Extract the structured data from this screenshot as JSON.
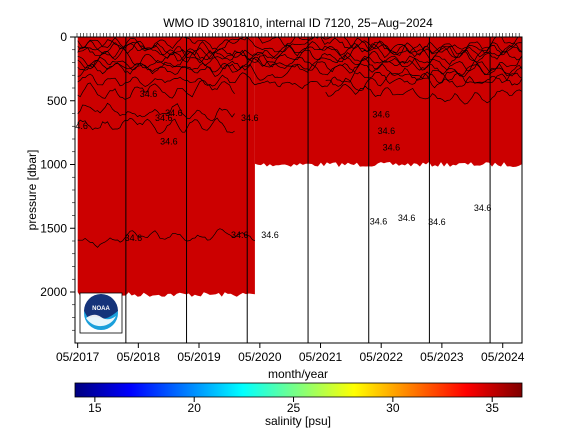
{
  "chart_data": {
    "type": "heatmap",
    "title": "WMO ID 3901810, internal ID 7120, 25−Aug−2024",
    "xlabel": "month/year",
    "ylabel": "pressure [dbar]",
    "x_ticks": [
      "05/2017",
      "05/2018",
      "05/2019",
      "05/2020",
      "05/2021",
      "05/2022",
      "05/2023",
      "05/2024"
    ],
    "xlim": [
      "2017-04-15",
      "2024-08-25"
    ],
    "y_ticks": [
      0,
      500,
      1000,
      1500,
      2000
    ],
    "ylim": [
      2400,
      0
    ],
    "y_reversed": true,
    "depth_coverage": [
      {
        "from": "2017-05-01",
        "to": "2020-04-01",
        "max_pressure": 2020
      },
      {
        "from": "2020-04-01",
        "to": "2024-08-25",
        "max_pressure": 1000
      }
    ],
    "contour_labels": [
      {
        "date": "2017-05-10",
        "pressure": 720,
        "text": "34.6"
      },
      {
        "date": "2018-07-01",
        "pressure": 470,
        "text": "34.6"
      },
      {
        "date": "2018-10-01",
        "pressure": 660,
        "text": "34.6"
      },
      {
        "date": "2018-11-01",
        "pressure": 845,
        "text": "34.6"
      },
      {
        "date": "2018-12-01",
        "pressure": 620,
        "text": "34.6"
      },
      {
        "date": "2020-03-01",
        "pressure": 660,
        "text": "34.6"
      },
      {
        "date": "2018-04-01",
        "pressure": 1600,
        "text": "34.6"
      },
      {
        "date": "2020-01-01",
        "pressure": 1575,
        "text": "34.6"
      },
      {
        "date": "2020-07-01",
        "pressure": 1575,
        "text": "34.6"
      },
      {
        "date": "2022-05-01",
        "pressure": 630,
        "text": "34.6"
      },
      {
        "date": "2022-06-01",
        "pressure": 760,
        "text": "34.6"
      },
      {
        "date": "2022-07-01",
        "pressure": 890,
        "text": "34.6"
      },
      {
        "date": "2022-04-15",
        "pressure": 1470,
        "text": "34.6"
      },
      {
        "date": "2022-10-01",
        "pressure": 1445,
        "text": "34.6"
      },
      {
        "date": "2023-04-01",
        "pressure": 1475,
        "text": "34.6"
      },
      {
        "date": "2024-01-01",
        "pressure": 1365,
        "text": "34.6"
      }
    ],
    "profile_lines": [
      "2018-02-15",
      "2019-02-15",
      "2020-02-15",
      "2021-02-15",
      "2022-02-15",
      "2023-02-15",
      "2024-02-15"
    ],
    "colorbar": {
      "label": "salinity [psu]",
      "range": [
        14,
        36.5
      ],
      "ticks": [
        15,
        20,
        25,
        30,
        35
      ],
      "colors": [
        "#00007f",
        "#0000ff",
        "#007fff",
        "#00ffff",
        "#7fff7f",
        "#ffff00",
        "#ff7f00",
        "#ff0000",
        "#7f0000"
      ]
    },
    "fill_color": "#cc0000"
  },
  "logo": {
    "text": "NOAA"
  }
}
